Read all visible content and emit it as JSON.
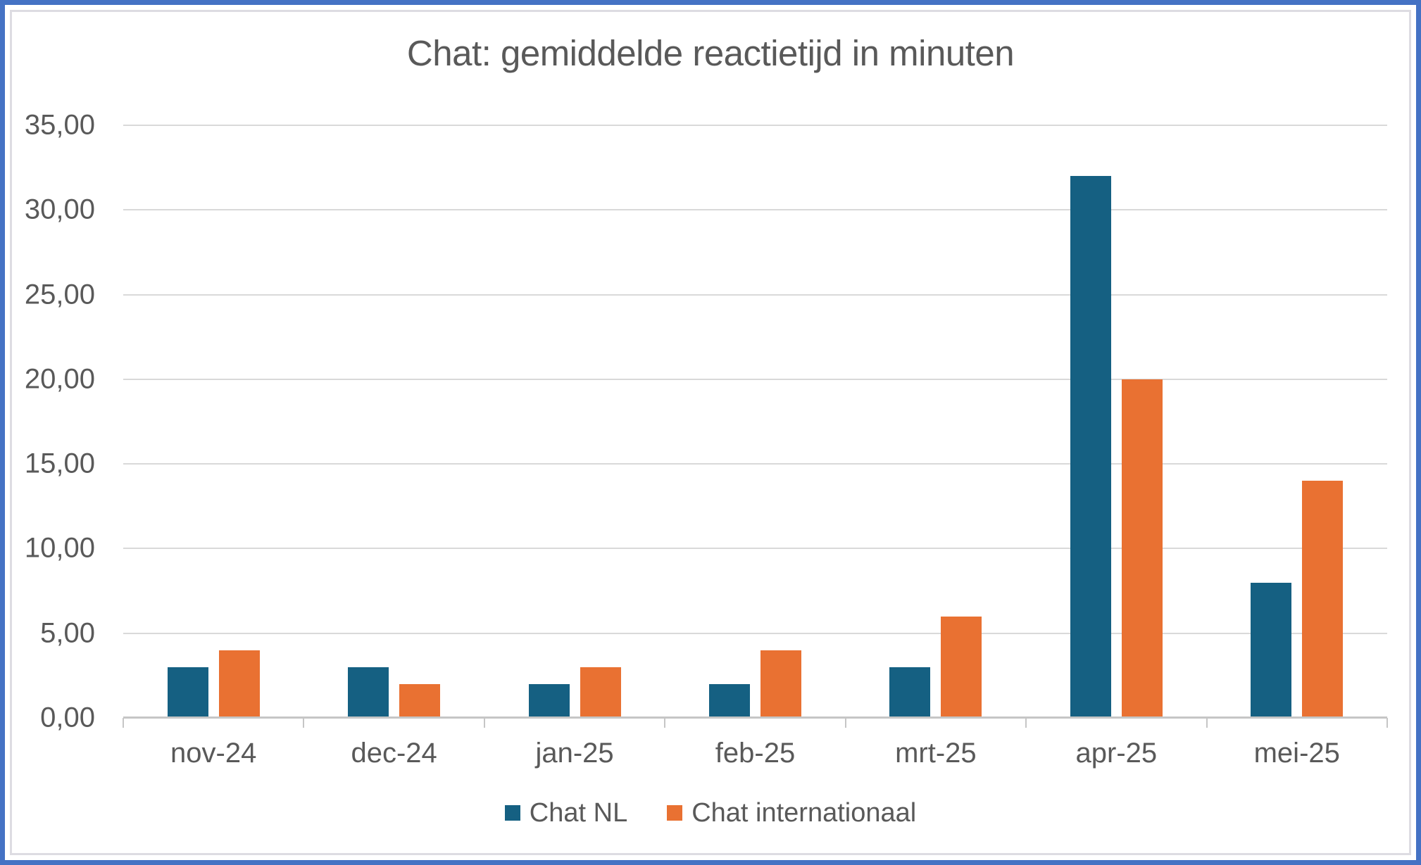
{
  "chart_data": {
    "type": "bar",
    "title": "Chat: gemiddelde reactietijd in minuten",
    "categories": [
      "nov-24",
      "dec-24",
      "jan-25",
      "feb-25",
      "mrt-25",
      "apr-25",
      "mei-25"
    ],
    "series": [
      {
        "name": "Chat NL",
        "color": "#156082",
        "values": [
          3,
          3,
          2,
          2,
          3,
          32,
          8
        ]
      },
      {
        "name": "Chat internationaal",
        "color": "#E97132",
        "values": [
          4,
          2,
          3,
          4,
          6,
          20,
          14
        ]
      }
    ],
    "ylim": [
      0,
      35
    ],
    "y_tick_step": 5,
    "y_tick_labels": [
      "0,00",
      "5,00",
      "10,00",
      "15,00",
      "20,00",
      "25,00",
      "30,00",
      "35,00"
    ],
    "grid": true,
    "legend_position": "bottom"
  },
  "colors": {
    "frame_border": "#4472C4",
    "gridline": "#D9D9D9",
    "axis_line": "#C6C6C6",
    "label_text": "#595959"
  }
}
